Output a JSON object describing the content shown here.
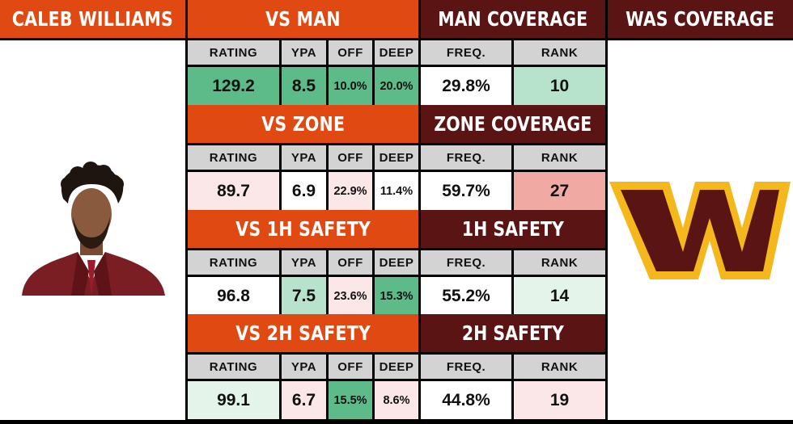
{
  "colors": {
    "orange": "#E04A12",
    "maroon": "#5A1414",
    "header_gray": "#D3D3D3",
    "green_strong": "#5DBB8A",
    "green_medium": "#B7E3CC",
    "green_light": "#E4F4EA",
    "red_light": "#FBE7E7",
    "red_strong": "#F0A9A3",
    "logo_maroon": "#5A1414",
    "logo_gold": "#F5B81C"
  },
  "left_panel": {
    "title": "CALEB WILLIAMS",
    "photo_icon": "player-headshot"
  },
  "right_panel": {
    "title": "WAS COVERAGE",
    "logo_icon": "commanders-w-logo"
  },
  "sub_headers": {
    "rating": "RATING",
    "ypa": "YPA",
    "off": "OFF",
    "deep": "DEEP",
    "freq": "FREQ.",
    "rank": "RANK"
  },
  "sections": [
    {
      "vs_title": "VS MAN",
      "cov_title": "MAN COVERAGE",
      "rating": "129.2",
      "ypa": "8.5",
      "off": "10.0%",
      "deep": "20.0%",
      "freq": "29.8%",
      "rank": "10",
      "shades": {
        "rating": "green_strong",
        "ypa": "green_strong",
        "off": "green_strong",
        "deep": "green_strong",
        "freq": "white",
        "rank": "green_medium"
      }
    },
    {
      "vs_title": "VS ZONE",
      "cov_title": "ZONE COVERAGE",
      "rating": "89.7",
      "ypa": "6.9",
      "off": "22.9%",
      "deep": "11.4%",
      "freq": "59.7%",
      "rank": "27",
      "shades": {
        "rating": "red_light",
        "ypa": "white",
        "off": "red_light",
        "deep": "white",
        "freq": "white",
        "rank": "red_strong"
      }
    },
    {
      "vs_title": "VS 1H SAFETY",
      "cov_title": "1H SAFETY",
      "rating": "96.8",
      "ypa": "7.5",
      "off": "23.6%",
      "deep": "15.3%",
      "freq": "55.2%",
      "rank": "14",
      "shades": {
        "rating": "white",
        "ypa": "green_medium",
        "off": "red_light",
        "deep": "green_strong",
        "freq": "white",
        "rank": "green_light"
      }
    },
    {
      "vs_title": "VS 2H SAFETY",
      "cov_title": "2H SAFETY",
      "rating": "99.1",
      "ypa": "6.7",
      "off": "15.5%",
      "deep": "8.6%",
      "freq": "44.8%",
      "rank": "19",
      "shades": {
        "rating": "green_light",
        "ypa": "red_light",
        "off": "green_strong",
        "deep": "red_light",
        "freq": "white",
        "rank": "red_light"
      }
    }
  ]
}
